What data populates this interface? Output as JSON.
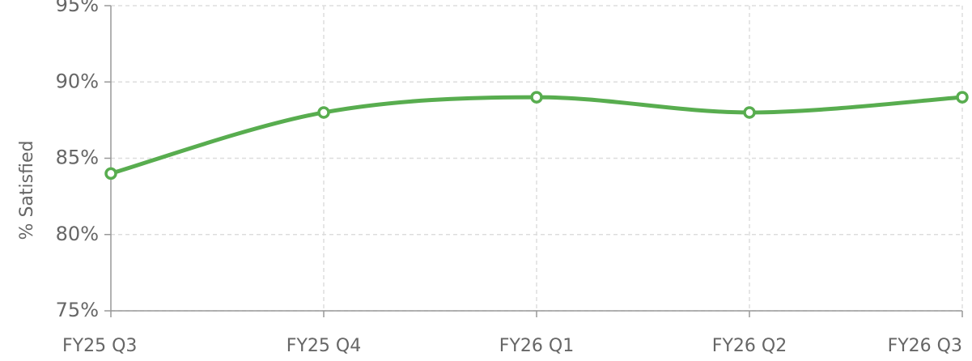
{
  "chart_data": {
    "type": "line",
    "y_label": "% Satisfied",
    "categories": [
      "FY25 Q3",
      "FY25 Q4",
      "FY26 Q1",
      "FY26 Q2",
      "FY26 Q3"
    ],
    "series": [
      {
        "name": "% Satisfied",
        "color": "#58ad4f",
        "values": [
          84,
          88,
          89,
          88,
          89
        ]
      }
    ],
    "ylim": [
      75,
      95
    ],
    "yticks": [
      {
        "value": 75,
        "label": "75%"
      },
      {
        "value": 80,
        "label": "80%"
      },
      {
        "value": 85,
        "label": "85%"
      },
      {
        "value": 90,
        "label": "90%"
      },
      {
        "value": 95,
        "label": "95%"
      }
    ],
    "grid": true,
    "smooth": true
  }
}
